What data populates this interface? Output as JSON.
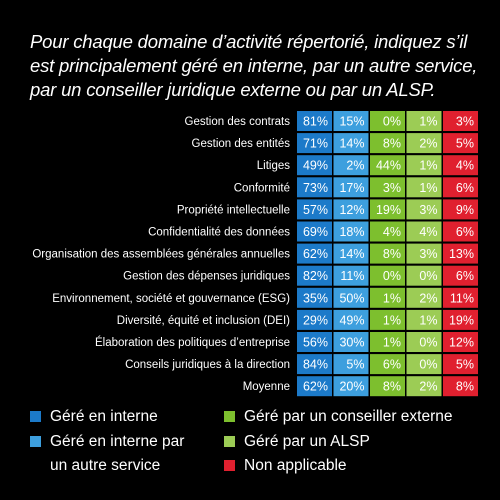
{
  "colors": {
    "background": "#000000",
    "text": "#ffffff",
    "interne": "#1c7ac9",
    "autre_service": "#3d9fde",
    "conseiller_externe": "#7dbf2e",
    "alsp": "#9ccc55",
    "non_applicable": "#e0202f"
  },
  "chart_data": {
    "type": "heatmap",
    "title": "Pour chaque domaine d’activité répertorié, indiquez s’il est principalement géré en interne, par un autre service, par un conseiller juridique externe ou par un ALSP.",
    "columns": [
      "Géré en interne",
      "Géré en interne par un autre service",
      "Géré par un conseiller externe",
      "Géré par un ALSP",
      "Non applicable"
    ],
    "rows": [
      {
        "label": "Gestion des contrats",
        "values": [
          81,
          15,
          0,
          1,
          3
        ]
      },
      {
        "label": "Gestion des entités",
        "values": [
          71,
          14,
          8,
          2,
          5
        ]
      },
      {
        "label": "Litiges",
        "values": [
          49,
          2,
          44,
          1,
          4
        ]
      },
      {
        "label": "Conformité",
        "values": [
          73,
          17,
          3,
          1,
          6
        ]
      },
      {
        "label": "Propriété intellectuelle",
        "values": [
          57,
          12,
          19,
          3,
          9
        ]
      },
      {
        "label": "Confidentialité des données",
        "values": [
          69,
          18,
          4,
          4,
          6
        ]
      },
      {
        "label": "Organisation des assemblées générales annuelles",
        "values": [
          62,
          14,
          8,
          3,
          13
        ]
      },
      {
        "label": "Gestion des dépenses juridiques",
        "values": [
          82,
          11,
          0,
          0,
          6
        ]
      },
      {
        "label": "Environnement, société et gouvernance (ESG)",
        "values": [
          35,
          50,
          1,
          2,
          11
        ]
      },
      {
        "label": "Diversité, équité et inclusion (DEI)",
        "values": [
          29,
          49,
          1,
          1,
          19
        ]
      },
      {
        "label": "Élaboration des politiques d’entreprise",
        "values": [
          56,
          30,
          1,
          0,
          12
        ]
      },
      {
        "label": "Conseils juridiques à la direction",
        "values": [
          84,
          5,
          6,
          0,
          5
        ]
      },
      {
        "label": "Moyenne",
        "values": [
          62,
          20,
          8,
          2,
          8
        ]
      }
    ],
    "value_suffix": "%",
    "legend": [
      {
        "label": "Géré en interne",
        "color": "#1c7ac9"
      },
      {
        "label": "Géré en interne par un autre service",
        "line1": "Géré en interne par",
        "line2": "un autre service",
        "color": "#3d9fde"
      },
      {
        "label": "Géré par un conseiller externe",
        "color": "#7dbf2e"
      },
      {
        "label": "Géré par un ALSP",
        "color": "#9ccc55"
      },
      {
        "label": "Non applicable",
        "color": "#e0202f"
      }
    ]
  }
}
